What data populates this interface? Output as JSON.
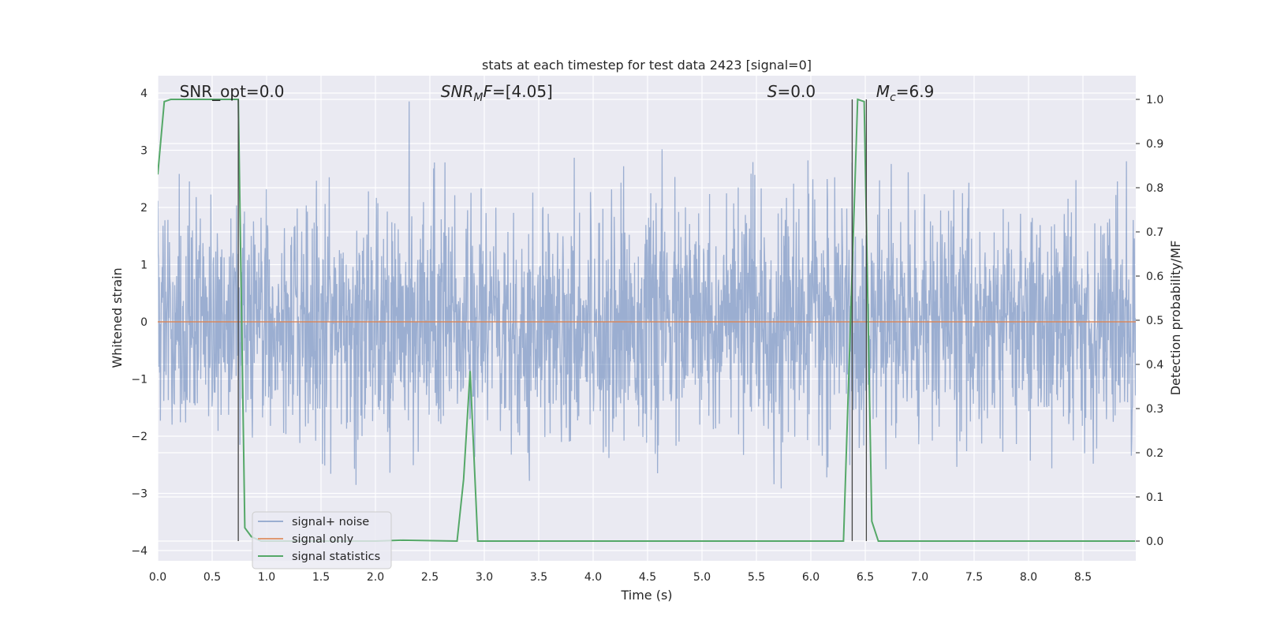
{
  "chart_data": {
    "type": "line",
    "title": "stats at each timestep for test data 2423 [signal=0]",
    "xlabel": "Time (s)",
    "ylabel_left": "Whitened strain",
    "ylabel_right": "Detection probability/MF",
    "xlim": [
      0,
      9
    ],
    "ylim_left": [
      -4.2,
      4.4
    ],
    "ylim_right": [
      -0.045,
      1.045
    ],
    "grid": true,
    "legend_placement": "lower-left",
    "x_ticks": [
      "0.0",
      "0.5",
      "1.0",
      "1.5",
      "2.0",
      "2.5",
      "3.0",
      "3.5",
      "4.0",
      "4.5",
      "5.0",
      "5.5",
      "6.0",
      "6.5",
      "7.0",
      "7.5",
      "8.0",
      "8.5"
    ],
    "y_left_ticks": [
      "4",
      "3",
      "2",
      "1",
      "0",
      "−1",
      "−2",
      "−3",
      "−4"
    ],
    "y_right_ticks": [
      "1.0",
      "0.9",
      "0.8",
      "0.7",
      "0.6",
      "0.5",
      "0.4",
      "0.3",
      "0.2",
      "0.1",
      "0.0"
    ],
    "annotations": [
      {
        "prefix": "SNR_opt=",
        "value": "0.0",
        "x": 0.2
      },
      {
        "prefix": "SNR",
        "sub": "M",
        "suffix": "F=",
        "value": "[4.05]",
        "x": 2.6
      },
      {
        "prefix": "S",
        "suffix": "=",
        "value": "0.0",
        "x": 5.6
      },
      {
        "prefix": "M",
        "sub": "c",
        "suffix": "=",
        "value": "6.9",
        "x": 6.6
      }
    ],
    "vertical_lines": [
      0.74,
      6.38,
      6.51
    ],
    "series": [
      {
        "name": "signal+ noise",
        "color": "#4c72b0",
        "kind": "noise",
        "noise_std": 1.0,
        "duration": 9.0
      },
      {
        "name": "signal only",
        "color": "#dd8452",
        "kind": "line",
        "x": [
          0,
          9
        ],
        "y": [
          0,
          0
        ]
      },
      {
        "name": "signal statistics",
        "color": "#55a868",
        "kind": "line",
        "axis": "right",
        "x": [
          0.0,
          0.06,
          0.12,
          0.5,
          0.74,
          0.8,
          0.86,
          0.95,
          2.0,
          2.25,
          2.75,
          2.81,
          2.87,
          2.94,
          6.3,
          6.43,
          6.49,
          6.56,
          6.62,
          8.98
        ],
        "y": [
          0.83,
          0.995,
          1.0,
          1.0,
          1.0,
          0.03,
          0.01,
          0.0,
          0.0,
          0.002,
          0.0,
          0.14,
          0.385,
          0.0,
          0.0,
          1.0,
          0.995,
          0.045,
          0.0,
          0.0
        ]
      }
    ]
  }
}
